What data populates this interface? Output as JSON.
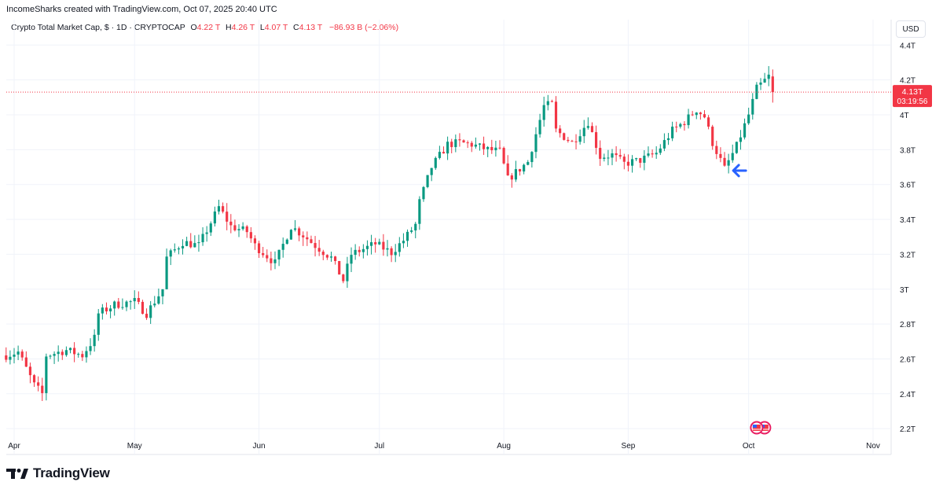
{
  "header": {
    "attribution": "IncomeSharks created with TradingView.com, Oct 07, 2025 20:40 UTC"
  },
  "legend": {
    "symbol": "Crypto Total Market Cap, $ · 1D · CRYPTOCAP",
    "o_label": "O",
    "o_value": "4.22 T",
    "h_label": "H",
    "h_value": "4.26 T",
    "l_label": "L",
    "l_value": "4.07 T",
    "c_label": "C",
    "c_value": "4.13 T",
    "change": "−86.93 B (−2.06%)"
  },
  "currency_button": "USD",
  "brand": {
    "name": "TradingView",
    "logo": "tradingview-logo-icon"
  },
  "colors": {
    "up": "#089981",
    "down": "#f23645",
    "grid": "#f0f3fa",
    "arrow": "#2962ff",
    "price_line": "#f23645"
  },
  "chart_data": {
    "type": "candlestick",
    "title": "Crypto Total Market Cap, $ · 1D · CRYPTOCAP",
    "ylim": [
      2.18,
      4.48
    ],
    "y_unit": "T",
    "y_ticks": [
      {
        "value": 4.4,
        "label": "4.4T"
      },
      {
        "value": 4.2,
        "label": "4.2T"
      },
      {
        "value": 4.0,
        "label": "4T"
      },
      {
        "value": 3.8,
        "label": "3.8T"
      },
      {
        "value": 3.6,
        "label": "3.6T"
      },
      {
        "value": 3.4,
        "label": "3.4T"
      },
      {
        "value": 3.2,
        "label": "3.2T"
      },
      {
        "value": 3.0,
        "label": "3T"
      },
      {
        "value": 2.8,
        "label": "2.8T"
      },
      {
        "value": 2.6,
        "label": "2.6T"
      },
      {
        "value": 2.4,
        "label": "2.4T"
      },
      {
        "value": 2.2,
        "label": "2.2T"
      }
    ],
    "x_start": "2025-04-01",
    "x_end": "2025-11-01",
    "x_ticks": [
      {
        "date": "2025-04-01",
        "label": "Apr"
      },
      {
        "date": "2025-05-01",
        "label": "May"
      },
      {
        "date": "2025-06-01",
        "label": "Jun"
      },
      {
        "date": "2025-07-01",
        "label": "Jul"
      },
      {
        "date": "2025-08-01",
        "label": "Aug"
      },
      {
        "date": "2025-09-01",
        "label": "Sep"
      },
      {
        "date": "2025-10-01",
        "label": "Oct"
      },
      {
        "date": "2025-11-01",
        "label": "Nov"
      }
    ],
    "close_series": [
      [
        "2025-03-30",
        2.62
      ],
      [
        "2025-04-02",
        2.64
      ],
      [
        "2025-04-06",
        2.45
      ],
      [
        "2025-04-08",
        2.4
      ],
      [
        "2025-04-09",
        2.62
      ],
      [
        "2025-04-14",
        2.65
      ],
      [
        "2025-04-18",
        2.62
      ],
      [
        "2025-04-21",
        2.72
      ],
      [
        "2025-04-22",
        2.86
      ],
      [
        "2025-04-26",
        2.91
      ],
      [
        "2025-05-01",
        2.93
      ],
      [
        "2025-05-04",
        2.86
      ],
      [
        "2025-05-08",
        3.0
      ],
      [
        "2025-05-09",
        3.18
      ],
      [
        "2025-05-13",
        3.27
      ],
      [
        "2025-05-17",
        3.25
      ],
      [
        "2025-05-22",
        3.47
      ],
      [
        "2025-05-25",
        3.36
      ],
      [
        "2025-05-29",
        3.33
      ],
      [
        "2025-05-31",
        3.25
      ],
      [
        "2025-06-05",
        3.15
      ],
      [
        "2025-06-09",
        3.36
      ],
      [
        "2025-06-12",
        3.31
      ],
      [
        "2025-06-15",
        3.25
      ],
      [
        "2025-06-19",
        3.18
      ],
      [
        "2025-06-22",
        3.05
      ],
      [
        "2025-06-24",
        3.2
      ],
      [
        "2025-06-30",
        3.26
      ],
      [
        "2025-07-04",
        3.21
      ],
      [
        "2025-07-07",
        3.28
      ],
      [
        "2025-07-10",
        3.37
      ],
      [
        "2025-07-11",
        3.5
      ],
      [
        "2025-07-14",
        3.7
      ],
      [
        "2025-07-18",
        3.83
      ],
      [
        "2025-07-21",
        3.84
      ],
      [
        "2025-07-24",
        3.83
      ],
      [
        "2025-07-28",
        3.8
      ],
      [
        "2025-07-31",
        3.79
      ],
      [
        "2025-08-02",
        3.63
      ],
      [
        "2025-08-07",
        3.73
      ],
      [
        "2025-08-11",
        4.05
      ],
      [
        "2025-08-13",
        4.06
      ],
      [
        "2025-08-14",
        3.91
      ],
      [
        "2025-08-18",
        3.84
      ],
      [
        "2025-08-22",
        3.96
      ],
      [
        "2025-08-25",
        3.76
      ],
      [
        "2025-08-28",
        3.77
      ],
      [
        "2025-08-31",
        3.72
      ],
      [
        "2025-09-04",
        3.74
      ],
      [
        "2025-09-08",
        3.78
      ],
      [
        "2025-09-12",
        3.91
      ],
      [
        "2025-09-15",
        3.96
      ],
      [
        "2025-09-18",
        4.03
      ],
      [
        "2025-09-20",
        3.99
      ],
      [
        "2025-09-22",
        3.84
      ],
      [
        "2025-09-25",
        3.69
      ],
      [
        "2025-09-28",
        3.82
      ],
      [
        "2025-10-01",
        4.0
      ],
      [
        "2025-10-03",
        4.15
      ],
      [
        "2025-10-06",
        4.22
      ],
      [
        "2025-10-07",
        4.13
      ]
    ],
    "last_price_label": "4.13T",
    "countdown_label": "03:19:56",
    "annotations": [
      {
        "type": "arrow",
        "direction": "left",
        "date": "2025-09-26",
        "value": 3.68,
        "color": "#2962ff"
      },
      {
        "type": "event-flags",
        "date": "2025-10-03",
        "icon": "us-flag-icon",
        "count": 2
      }
    ]
  }
}
